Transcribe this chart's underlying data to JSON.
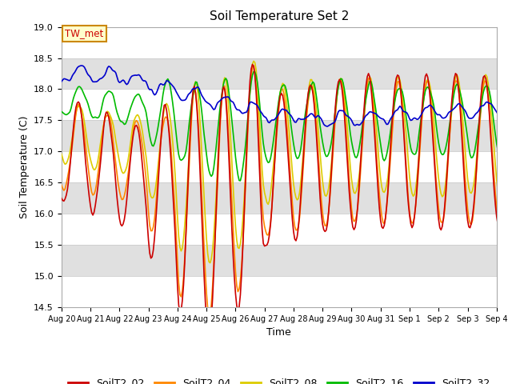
{
  "title": "Soil Temperature Set 2",
  "xlabel": "Time",
  "ylabel": "Soil Temperature (C)",
  "ylim": [
    14.5,
    19.0
  ],
  "yticks": [
    14.5,
    15.0,
    15.5,
    16.0,
    16.5,
    17.0,
    17.5,
    18.0,
    18.5,
    19.0
  ],
  "x_tick_labels": [
    "Aug 20",
    "Aug 21",
    "Aug 22",
    "Aug 23",
    "Aug 24",
    "Aug 25",
    "Aug 26",
    "Aug 27",
    "Aug 28",
    "Aug 29",
    "Aug 30",
    "Aug 31",
    "Sep 1",
    "Sep 2",
    "Sep 3",
    "Sep 4"
  ],
  "series_colors": {
    "SoilT2_02": "#cc0000",
    "SoilT2_04": "#ff8800",
    "SoilT2_08": "#ddcc00",
    "SoilT2_16": "#00bb00",
    "SoilT2_32": "#0000cc"
  },
  "annotation_text": "TW_met",
  "bg_color": "#ffffff",
  "plot_bg_color": "#e0e0e0",
  "line_width": 1.2,
  "title_fontsize": 11,
  "axis_fontsize": 9,
  "tick_fontsize": 8
}
